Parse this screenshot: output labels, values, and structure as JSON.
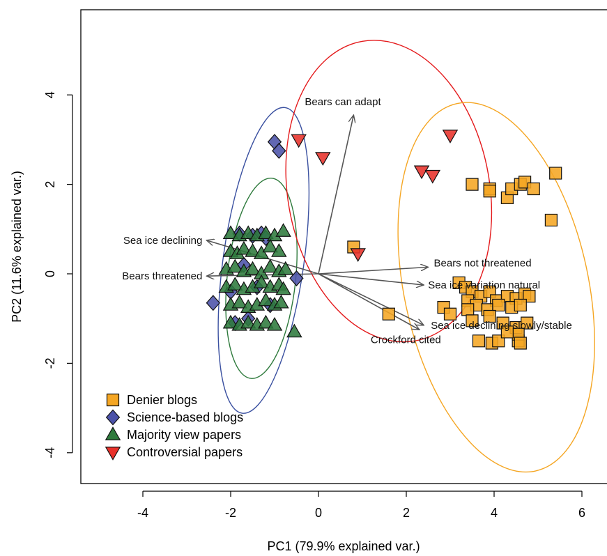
{
  "chart_data": {
    "type": "scatter",
    "title": "",
    "xlabel": "PC1 (79.9% explained var.)",
    "ylabel": "PC2 (11.6% explained var.)",
    "xlim": [
      -5.2,
      6.55
    ],
    "ylim": [
      -4.8,
      5.6
    ],
    "x_ticks": [
      -4,
      -2,
      0,
      2,
      4,
      6
    ],
    "y_ticks": [
      -4,
      -2,
      0,
      2,
      4
    ],
    "grid": false,
    "legend_position": "bottom-left",
    "series": [
      {
        "name": "Denier blogs",
        "marker": "square",
        "color": "#F5A623",
        "points": [
          [
            3.5,
            2.0
          ],
          [
            3.9,
            1.9
          ],
          [
            3.9,
            1.85
          ],
          [
            4.3,
            1.7
          ],
          [
            4.4,
            1.9
          ],
          [
            4.6,
            2.0
          ],
          [
            4.7,
            2.05
          ],
          [
            4.9,
            1.9
          ],
          [
            5.4,
            2.25
          ],
          [
            5.3,
            1.2
          ],
          [
            0.8,
            0.6
          ],
          [
            1.6,
            -0.9
          ],
          [
            3.2,
            -0.2
          ],
          [
            3.35,
            -0.3
          ],
          [
            3.5,
            -0.4
          ],
          [
            3.7,
            -0.5
          ],
          [
            3.9,
            -0.4
          ],
          [
            4.05,
            -0.6
          ],
          [
            4.3,
            -0.5
          ],
          [
            4.5,
            -0.55
          ],
          [
            4.7,
            -0.45
          ],
          [
            4.8,
            -0.5
          ],
          [
            3.4,
            -0.6
          ],
          [
            3.6,
            -0.7
          ],
          [
            3.85,
            -0.8
          ],
          [
            4.1,
            -0.7
          ],
          [
            4.4,
            -0.75
          ],
          [
            4.6,
            -0.7
          ],
          [
            2.85,
            -0.75
          ],
          [
            3.0,
            -0.9
          ],
          [
            3.4,
            -0.8
          ],
          [
            3.9,
            -0.95
          ],
          [
            4.2,
            -1.1
          ],
          [
            4.5,
            -1.2
          ],
          [
            4.75,
            -1.1
          ],
          [
            3.5,
            -1.05
          ],
          [
            3.65,
            -1.5
          ],
          [
            3.95,
            -1.55
          ],
          [
            4.1,
            -1.5
          ],
          [
            4.55,
            -1.5
          ],
          [
            4.55,
            -1.35
          ],
          [
            4.6,
            -1.55
          ],
          [
            4.3,
            -1.3
          ]
        ]
      },
      {
        "name": "Science-based blogs",
        "marker": "diamond",
        "color": "#4B52A8",
        "points": [
          [
            -1.0,
            2.95
          ],
          [
            -0.9,
            2.75
          ],
          [
            -0.5,
            -0.1
          ],
          [
            -2.4,
            -0.65
          ],
          [
            -1.8,
            0.9
          ],
          [
            -1.5,
            0.85
          ],
          [
            -1.3,
            0.9
          ],
          [
            -1.2,
            0.8
          ],
          [
            -1.7,
            0.2
          ],
          [
            -1.4,
            -0.3
          ],
          [
            -1.1,
            -0.7
          ],
          [
            -1.9,
            -1.1
          ],
          [
            -1.6,
            -1.0
          ],
          [
            -2.0,
            -0.4
          ]
        ]
      },
      {
        "name": "Majority view papers",
        "marker": "triangle-up",
        "color": "#2E7A3C",
        "points": [
          [
            -2.0,
            0.9
          ],
          [
            -1.8,
            0.85
          ],
          [
            -1.6,
            0.9
          ],
          [
            -1.4,
            0.85
          ],
          [
            -1.2,
            0.9
          ],
          [
            -1.0,
            0.85
          ],
          [
            -0.8,
            0.95
          ],
          [
            -2.0,
            0.5
          ],
          [
            -1.85,
            0.45
          ],
          [
            -1.7,
            0.55
          ],
          [
            -1.5,
            0.5
          ],
          [
            -1.3,
            0.45
          ],
          [
            -1.1,
            0.6
          ],
          [
            -0.9,
            0.5
          ],
          [
            -2.1,
            0.1
          ],
          [
            -1.9,
            0.15
          ],
          [
            -1.7,
            0.05
          ],
          [
            -1.5,
            0.1
          ],
          [
            -1.3,
            0.0
          ],
          [
            -1.1,
            0.15
          ],
          [
            -0.9,
            0.05
          ],
          [
            -0.75,
            0.1
          ],
          [
            -2.1,
            -0.3
          ],
          [
            -1.9,
            -0.25
          ],
          [
            -1.7,
            -0.35
          ],
          [
            -1.5,
            -0.3
          ],
          [
            -1.3,
            -0.2
          ],
          [
            -1.1,
            -0.3
          ],
          [
            -0.9,
            -0.25
          ],
          [
            -0.8,
            -0.35
          ],
          [
            -2.0,
            -0.7
          ],
          [
            -1.8,
            -0.65
          ],
          [
            -1.6,
            -0.75
          ],
          [
            -1.4,
            -0.7
          ],
          [
            -1.2,
            -0.6
          ],
          [
            -1.0,
            -0.7
          ],
          [
            -0.85,
            -0.65
          ],
          [
            -2.0,
            -1.1
          ],
          [
            -1.8,
            -1.15
          ],
          [
            -1.6,
            -1.1
          ],
          [
            -1.4,
            -1.15
          ],
          [
            -1.2,
            -1.1
          ],
          [
            -1.0,
            -1.15
          ],
          [
            -0.55,
            -1.3
          ]
        ]
      },
      {
        "name": "Controversial papers",
        "marker": "triangle-down",
        "color": "#E8312A",
        "points": [
          [
            -0.45,
            3.0
          ],
          [
            0.1,
            2.6
          ],
          [
            2.35,
            2.3
          ],
          [
            2.6,
            2.2
          ],
          [
            3.0,
            3.1
          ],
          [
            0.9,
            0.45
          ]
        ]
      }
    ],
    "ellipses": [
      {
        "group": "Science-based blogs",
        "color": "#3A50A0",
        "cx": -1.25,
        "cy": 0.3,
        "rx": 0.92,
        "ry": 3.45,
        "angle_deg": 8
      },
      {
        "group": "Majority view papers",
        "color": "#2E7A3C",
        "cx": -1.3,
        "cy": -0.1,
        "rx": 0.78,
        "ry": 2.25,
        "angle_deg": 6
      },
      {
        "group": "Controversial papers",
        "color": "#E41A1C",
        "cx": 1.6,
        "cy": 1.85,
        "rx": 2.3,
        "ry": 3.4,
        "angle_deg": -10
      },
      {
        "group": "Denier blogs",
        "color": "#F5A623",
        "cx": 4.05,
        "cy": -0.3,
        "rx": 2.1,
        "ry": 4.2,
        "angle_deg": -12
      }
    ],
    "loadings": [
      {
        "label": "Bears can adapt",
        "x": 0.8,
        "y": 3.55
      },
      {
        "label": "Sea ice declining",
        "x": -2.55,
        "y": 0.75
      },
      {
        "label": "Bears threatened",
        "x": -2.55,
        "y": -0.05
      },
      {
        "label": "Bears not threatened",
        "x": 2.5,
        "y": 0.15
      },
      {
        "label": "Sea ice variation natural",
        "x": 2.4,
        "y": -0.25
      },
      {
        "label": "Sea ice declining slowly/stable",
        "x": 2.4,
        "y": -1.15
      },
      {
        "label": "Crockford cited",
        "x": 2.3,
        "y": -1.25
      }
    ]
  }
}
